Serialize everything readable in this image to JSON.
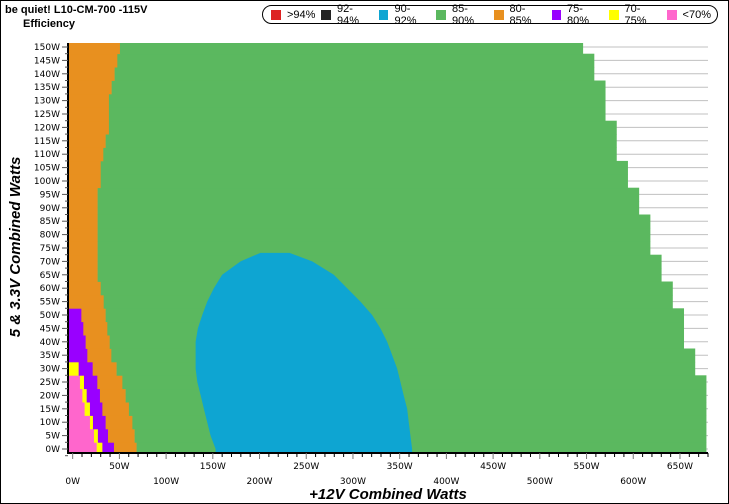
{
  "header": {
    "title": "be quiet! L10-CM-700 -115V",
    "subtitle": "Efficiency"
  },
  "chart_data": {
    "type": "heatmap",
    "xlabel": "+12V Combined Watts",
    "ylabel": "5 & 3.3V Combined Watts",
    "xlim": [
      -5,
      680
    ],
    "ylim": [
      0,
      150
    ],
    "grid": true,
    "legend_placement": "top",
    "legend": [
      {
        "label": ">94%",
        "color": "#dd2222"
      },
      {
        "label": "92-94%",
        "color": "#222222"
      },
      {
        "label": "90-92%",
        "color": "#0ea5d2"
      },
      {
        "label": "85-90%",
        "color": "#5bb85f"
      },
      {
        "label": "80-85%",
        "color": "#e8901f"
      },
      {
        "label": "75-80%",
        "color": "#9900ff"
      },
      {
        "label": "70-75%",
        "color": "#ffff00"
      },
      {
        "label": "<70%",
        "color": "#ff66cc"
      }
    ],
    "x_ticks": [
      "0W",
      "50W",
      "100W",
      "150W",
      "200W",
      "250W",
      "300W",
      "350W",
      "400W",
      "450W",
      "500W",
      "550W",
      "600W",
      "650W"
    ],
    "y_ticks": [
      "0W",
      "5W",
      "10W",
      "15W",
      "20W",
      "25W",
      "30W",
      "35W",
      "40W",
      "45W",
      "50W",
      "55W",
      "60W",
      "65W",
      "70W",
      "75W",
      "80W",
      "85W",
      "90W",
      "95W",
      "100W",
      "105W",
      "110W",
      "115W",
      "120W",
      "125W",
      "130W",
      "135W",
      "140W",
      "145W",
      "150W"
    ],
    "rows": [
      {
        "y": 0,
        "bands": [
          [
            "<70%",
            25.7
          ],
          [
            "70-75%",
            31.8
          ],
          [
            "75-80%",
            44.2
          ],
          [
            "80-85%",
            68.4
          ],
          [
            "85-90%",
            678
          ]
        ]
      },
      {
        "y": 5,
        "bands": [
          [
            "<70%",
            22.8
          ],
          [
            "70-75%",
            27
          ],
          [
            "75-80%",
            37.8
          ],
          [
            "80-85%",
            66.3
          ],
          [
            "85-90%",
            678
          ]
        ]
      },
      {
        "y": 10,
        "bands": [
          [
            "<70%",
            18.5
          ],
          [
            "70-75%",
            21.7
          ],
          [
            "75-80%",
            35.3
          ],
          [
            "80-85%",
            63.9
          ],
          [
            "85-90%",
            678
          ]
        ]
      },
      {
        "y": 15,
        "bands": [
          [
            "<70%",
            12.8
          ],
          [
            "70-75%",
            18.5
          ],
          [
            "75-80%",
            31.8
          ],
          [
            "80-85%",
            60.2
          ],
          [
            "85-90%",
            678
          ]
        ]
      },
      {
        "y": 20,
        "bands": [
          [
            "<70%",
            10.4
          ],
          [
            "70-75%",
            15
          ],
          [
            "75-80%",
            29.2
          ],
          [
            "80-85%",
            56.7
          ],
          [
            "85-90%",
            678
          ]
        ]
      },
      {
        "y": 25,
        "bands": [
          [
            "<70%",
            7.8
          ],
          [
            "70-75%",
            12.1
          ],
          [
            "75-80%",
            26.4
          ],
          [
            "80-85%",
            53.2
          ],
          [
            "85-90%",
            678
          ]
        ]
      },
      {
        "y": 30,
        "bands": [
          [
            "70-75%",
            6.4
          ],
          [
            "75-80%",
            21.4
          ],
          [
            "80-85%",
            47
          ],
          [
            "85-90%",
            666
          ]
        ]
      },
      {
        "y": 35,
        "bands": [
          [
            "75-80%",
            15.7
          ],
          [
            "80-85%",
            41.4
          ],
          [
            "85-90%",
            666
          ]
        ]
      },
      {
        "y": 40,
        "bands": [
          [
            "75-80%",
            13.9
          ],
          [
            "80-85%",
            39.6
          ],
          [
            "85-90%",
            654
          ]
        ]
      },
      {
        "y": 45,
        "bands": [
          [
            "75-80%",
            11.4
          ],
          [
            "80-85%",
            37.1
          ],
          [
            "85-90%",
            654
          ]
        ]
      },
      {
        "y": 50,
        "bands": [
          [
            "75-80%",
            9.3
          ],
          [
            "80-85%",
            35.3
          ],
          [
            "85-90%",
            654
          ]
        ]
      },
      {
        "y": 55,
        "bands": [
          [
            "80-85%",
            33.2
          ],
          [
            "85-90%",
            642
          ]
        ]
      },
      {
        "y": 60,
        "bands": [
          [
            "80-85%",
            30
          ],
          [
            "85-90%",
            642
          ]
        ]
      },
      {
        "y": 65,
        "bands": [
          [
            "80-85%",
            26.7
          ],
          [
            "85-90%",
            630
          ]
        ]
      },
      {
        "y": 70,
        "bands": [
          [
            "80-85%",
            26.7
          ],
          [
            "85-90%",
            630
          ]
        ]
      },
      {
        "y": 75,
        "bands": [
          [
            "80-85%",
            26.7
          ],
          [
            "85-90%",
            618
          ]
        ]
      },
      {
        "y": 80,
        "bands": [
          [
            "80-85%",
            26.7
          ],
          [
            "85-90%",
            618
          ]
        ]
      },
      {
        "y": 85,
        "bands": [
          [
            "80-85%",
            26.7
          ],
          [
            "85-90%",
            618
          ]
        ]
      },
      {
        "y": 90,
        "bands": [
          [
            "80-85%",
            26.7
          ],
          [
            "85-90%",
            606
          ]
        ]
      },
      {
        "y": 95,
        "bands": [
          [
            "80-85%",
            26.7
          ],
          [
            "85-90%",
            606
          ]
        ]
      },
      {
        "y": 100,
        "bands": [
          [
            "80-85%",
            30
          ],
          [
            "85-90%",
            594
          ]
        ]
      },
      {
        "y": 105,
        "bands": [
          [
            "80-85%",
            30
          ],
          [
            "85-90%",
            594
          ]
        ]
      },
      {
        "y": 110,
        "bands": [
          [
            "80-85%",
            32.8
          ],
          [
            "85-90%",
            582
          ]
        ]
      },
      {
        "y": 115,
        "bands": [
          [
            "80-85%",
            35.3
          ],
          [
            "85-90%",
            582
          ]
        ]
      },
      {
        "y": 120,
        "bands": [
          [
            "80-85%",
            38.8
          ],
          [
            "85-90%",
            582
          ]
        ]
      },
      {
        "y": 125,
        "bands": [
          [
            "80-85%",
            38.8
          ],
          [
            "85-90%",
            570
          ]
        ]
      },
      {
        "y": 130,
        "bands": [
          [
            "80-85%",
            38.8
          ],
          [
            "85-90%",
            570
          ]
        ]
      },
      {
        "y": 135,
        "bands": [
          [
            "80-85%",
            41.7
          ],
          [
            "85-90%",
            570
          ]
        ]
      },
      {
        "y": 140,
        "bands": [
          [
            "80-85%",
            44.9
          ],
          [
            "85-90%",
            558
          ]
        ]
      },
      {
        "y": 145,
        "bands": [
          [
            "80-85%",
            47.8
          ],
          [
            "85-90%",
            558
          ]
        ]
      },
      {
        "y": 150,
        "bands": [
          [
            "80-85%",
            50.6
          ],
          [
            "85-90%",
            546
          ]
        ]
      }
    ],
    "region_90_92": [
      {
        "y": 0,
        "from": 153,
        "to": 363.3
      },
      {
        "y": 5,
        "from": 147.6,
        "to": 361.5
      },
      {
        "y": 10,
        "from": 144,
        "to": 359.7
      },
      {
        "y": 15,
        "from": 140.4,
        "to": 358
      },
      {
        "y": 20,
        "from": 137,
        "to": 354.3
      },
      {
        "y": 25,
        "from": 133.4,
        "to": 350.8
      },
      {
        "y": 30,
        "from": 131.6,
        "to": 347.3
      },
      {
        "y": 35,
        "from": 131.6,
        "to": 342
      },
      {
        "y": 40,
        "from": 131.6,
        "to": 336.6
      },
      {
        "y": 45,
        "from": 134,
        "to": 329.4
      },
      {
        "y": 50,
        "from": 138.7,
        "to": 320.5
      },
      {
        "y": 55,
        "from": 144,
        "to": 308
      },
      {
        "y": 60,
        "from": 151.1,
        "to": 293.8
      },
      {
        "y": 65,
        "from": 160,
        "to": 279.5
      },
      {
        "y": 70,
        "from": 179.7,
        "to": 256.4
      },
      {
        "y": 73.2,
        "from": 201,
        "to": 232
      }
    ]
  }
}
